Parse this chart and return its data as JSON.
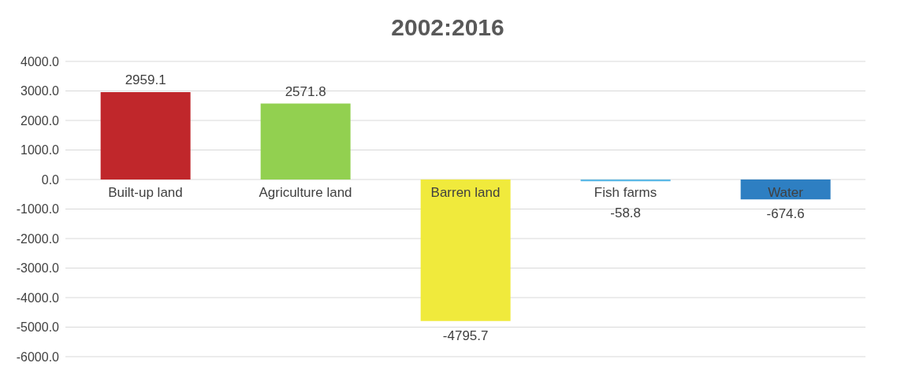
{
  "chart_data": {
    "type": "bar",
    "title": "2002:2016",
    "categories": [
      "Built-up land",
      "Agriculture land",
      "Barren land",
      "Fish farms",
      "Water"
    ],
    "values": [
      2959.1,
      2571.8,
      -4795.7,
      -58.8,
      -674.6
    ],
    "colors": [
      "#c0272b",
      "#92d050",
      "#f0ea3c",
      "#5bb8e6",
      "#2e7fc2"
    ],
    "ylim": [
      -6000,
      4000
    ],
    "yticks": [
      {
        "value": -6000,
        "label": "-6000.0"
      },
      {
        "value": -5000,
        "label": "-5000.0"
      },
      {
        "value": -4000,
        "label": "-4000.0"
      },
      {
        "value": -3000,
        "label": "-3000.0"
      },
      {
        "value": -2000,
        "label": "-2000.0"
      },
      {
        "value": -1000,
        "label": "-1000.0"
      },
      {
        "value": 0,
        "label": "0.0"
      },
      {
        "value": 1000,
        "label": "1000.0"
      },
      {
        "value": 2000,
        "label": "2000.0"
      },
      {
        "value": 3000,
        "label": "3000.0"
      },
      {
        "value": 4000,
        "label": "4000.0"
      }
    ],
    "grid": "y",
    "data_labels": true
  }
}
